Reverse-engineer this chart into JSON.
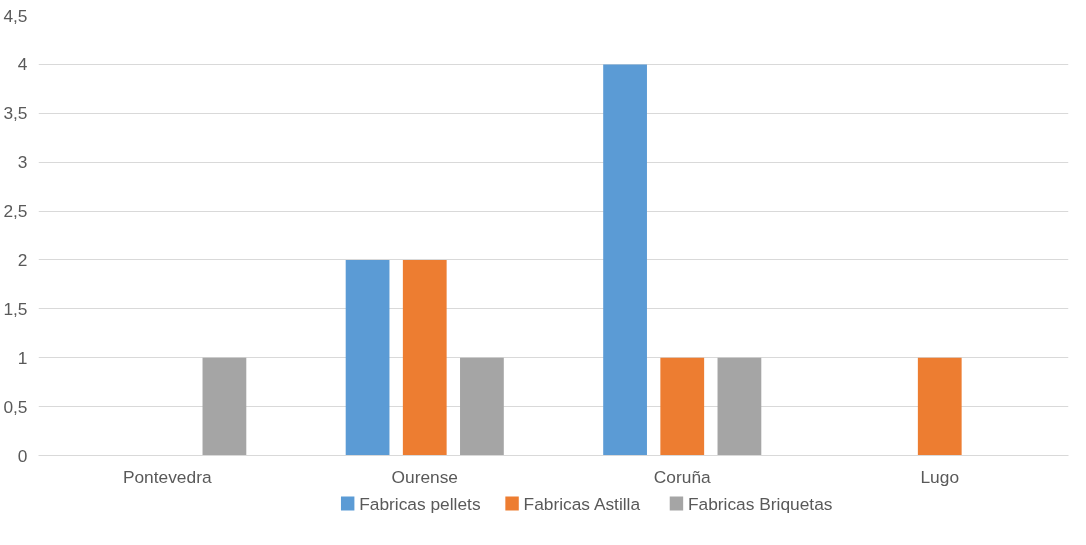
{
  "chart_data": {
    "type": "bar",
    "categories": [
      "Pontevedra",
      "Ourense",
      "Coruña",
      "Lugo"
    ],
    "series": [
      {
        "name": "Fabricas pellets",
        "color": "#5b9bd5",
        "values": [
          0,
          2,
          4,
          0
        ]
      },
      {
        "name": "Fabricas Astilla",
        "color": "#ed7d31",
        "values": [
          0,
          2,
          1,
          1
        ]
      },
      {
        "name": "Fabricas Briquetas",
        "color": "#a5a5a5",
        "values": [
          1,
          1,
          1,
          0
        ]
      }
    ],
    "ylim": [
      0,
      4.5
    ],
    "yticks": [
      0,
      {
        "value": 0.5,
        "label": "0,5"
      },
      1,
      {
        "value": 1.5,
        "label": "1,5"
      },
      2,
      {
        "value": 2.5,
        "label": "2,5"
      },
      3,
      {
        "value": 3.5,
        "label": "3,5"
      },
      4,
      {
        "value": 4.5,
        "label": "4,5"
      }
    ],
    "grid": "y",
    "legend": "bottom"
  }
}
